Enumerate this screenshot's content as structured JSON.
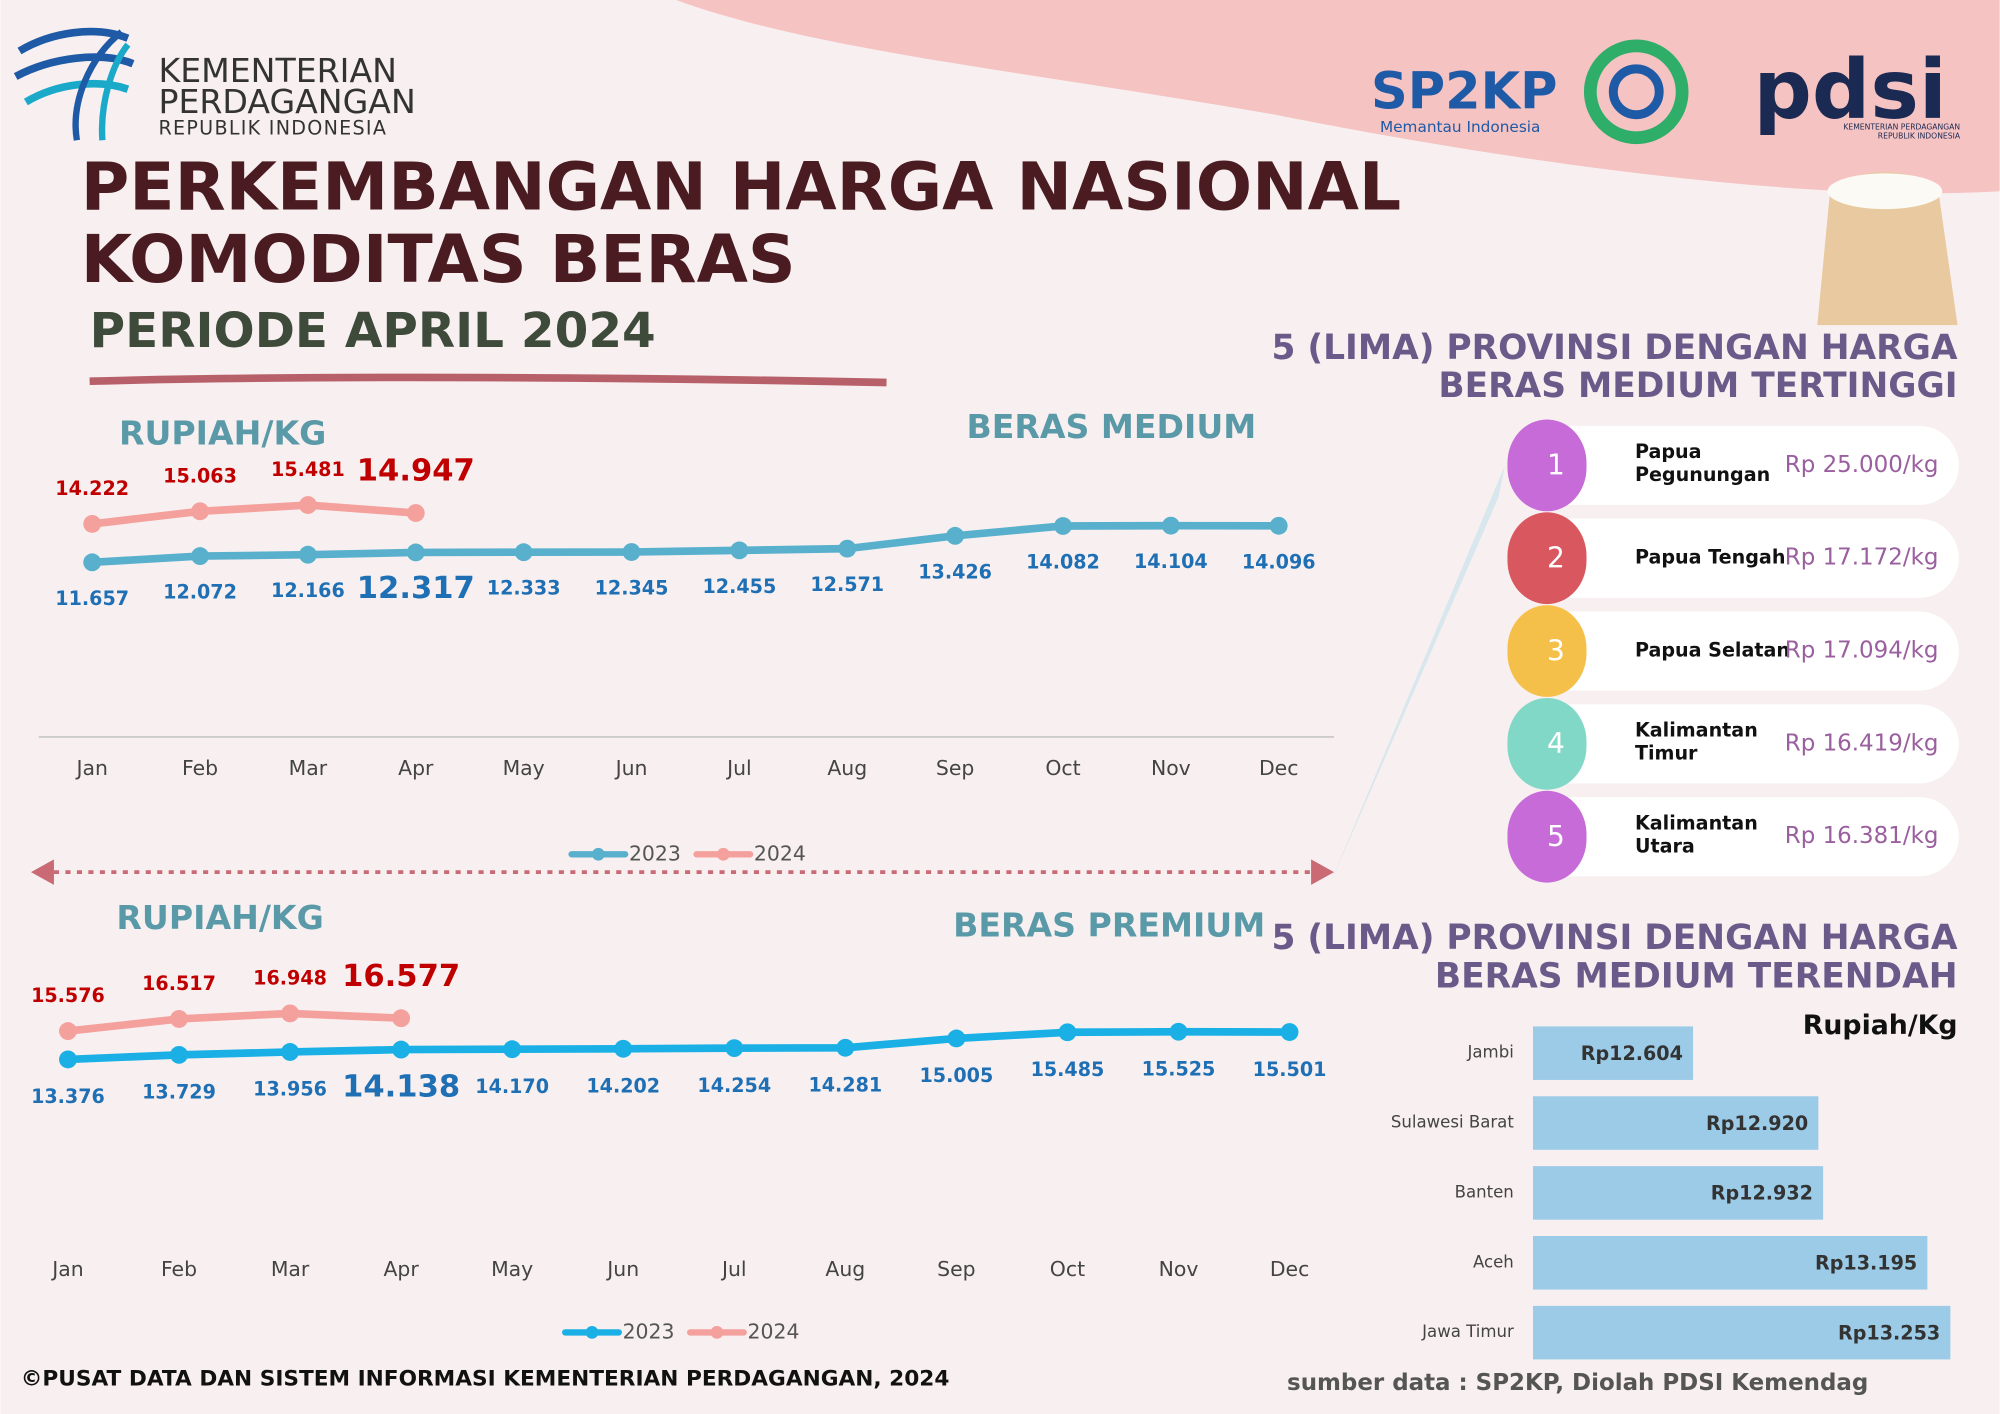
{
  "header": {
    "logo_lines": [
      "KEMENTERIAN",
      "PERDAGANGAN",
      "REPUBLIK INDONESIA"
    ],
    "sp2kp": "SP2KP",
    "sp2kp_tagline": "Memantau Indonesia",
    "pdsi": "pdsi",
    "pdsi_caption": [
      "KEMENTERIAN PERDAGANGAN",
      "REPUBLIK INDONESIA"
    ],
    "title": [
      "PERKEMBANGAN HARGA NASIONAL",
      "KOMODITAS BERAS"
    ],
    "subtitle": "PERIODE APRIL 2024"
  },
  "chart_data": [
    {
      "type": "line",
      "title": "BERAS MEDIUM",
      "y_label": "RUPIAH/KG",
      "categories": [
        "Jan",
        "Feb",
        "Mar",
        "Apr",
        "May",
        "Jun",
        "Jul",
        "Aug",
        "Sep",
        "Oct",
        "Nov",
        "Dec"
      ],
      "series": [
        {
          "name": "2023",
          "color": "#58b0cc",
          "values": [
            11657,
            12072,
            12166,
            12317,
            12333,
            12345,
            12455,
            12571,
            13426,
            14082,
            14104,
            14096
          ],
          "value_labels": [
            "11.657",
            "12.072",
            "12.166",
            "12.317",
            "12.333",
            "12.345",
            "12.455",
            "12.571",
            "13.426",
            "14.082",
            "14.104",
            "14.096"
          ]
        },
        {
          "name": "2024",
          "color": "#f4a09c",
          "values": [
            14222,
            15063,
            15481,
            14947,
            null,
            null,
            null,
            null,
            null,
            null,
            null,
            null
          ],
          "value_labels": [
            "14.222",
            "15.063",
            "15.481",
            "14.947",
            null,
            null,
            null,
            null,
            null,
            null,
            null,
            null
          ]
        }
      ],
      "ylim": [
        0,
        20000
      ],
      "legend": "bottom"
    },
    {
      "type": "line",
      "title": "BERAS PREMIUM",
      "y_label": "RUPIAH/KG",
      "categories": [
        "Jan",
        "Feb",
        "Mar",
        "Apr",
        "May",
        "Jun",
        "Jul",
        "Aug",
        "Sep",
        "Oct",
        "Nov",
        "Dec"
      ],
      "series": [
        {
          "name": "2023",
          "color": "#1ab0e6",
          "values": [
            13376,
            13729,
            13956,
            14138,
            14170,
            14202,
            14254,
            14281,
            15005,
            15485,
            15525,
            15501
          ],
          "value_labels": [
            "13.376",
            "13.729",
            "13.956",
            "14.138",
            "14.170",
            "14.202",
            "14.254",
            "14.281",
            "15.005",
            "15.485",
            "15.525",
            "15.501"
          ]
        },
        {
          "name": "2024",
          "color": "#f4a09c",
          "values": [
            15576,
            16517,
            16948,
            16577,
            null,
            null,
            null,
            null,
            null,
            null,
            null,
            null
          ],
          "value_labels": [
            "15.576",
            "16.517",
            "16.948",
            "16.577",
            null,
            null,
            null,
            null,
            null,
            null,
            null,
            null
          ]
        }
      ],
      "ylim": [
        0,
        20000
      ],
      "legend": "bottom"
    },
    {
      "type": "bar",
      "orientation": "horizontal",
      "title": [
        "5 (LIMA) PROVINSI DENGAN HARGA",
        "BERAS MEDIUM TERENDAH"
      ],
      "x_label": "Rupiah/Kg",
      "categories": [
        "Jambi",
        "Sulawesi Barat",
        "Banten",
        "Aceh",
        "Jawa Timur"
      ],
      "values": [
        12604,
        12920,
        12932,
        13195,
        13253
      ],
      "value_labels": [
        "Rp12.604",
        "Rp12.920",
        "Rp12.932",
        "Rp13.195",
        "Rp13.253"
      ],
      "color": "#9ccbe8",
      "xlim": [
        12200,
        13300
      ]
    }
  ],
  "top_provinces": {
    "title": [
      "5 (LIMA) PROVINSI DENGAN HARGA",
      "BERAS MEDIUM TERTINGGI"
    ],
    "items": [
      {
        "rank": "1",
        "name": [
          "Papua",
          "Pegunungan"
        ],
        "price": "Rp 25.000/kg",
        "color": "#c66bd8"
      },
      {
        "rank": "2",
        "name": [
          "Papua Tengah"
        ],
        "price": "Rp 17.172/kg",
        "color": "#d9575f"
      },
      {
        "rank": "3",
        "name": [
          "Papua Selatan"
        ],
        "price": "Rp 17.094/kg",
        "color": "#f5c04a"
      },
      {
        "rank": "4",
        "name": [
          "Kalimantan",
          "Timur"
        ],
        "price": "Rp 16.419/kg",
        "color": "#82d8c6"
      },
      {
        "rank": "5",
        "name": [
          "Kalimantan",
          "Utara"
        ],
        "price": "Rp 16.381/kg",
        "color": "#c66bd8"
      }
    ]
  },
  "footer": {
    "copyright": "©PUSAT DATA DAN SISTEM INFORMASI KEMENTERIAN PERDAGANGAN, 2024",
    "source": "sumber data : SP2KP, Diolah PDSI Kemendag"
  }
}
